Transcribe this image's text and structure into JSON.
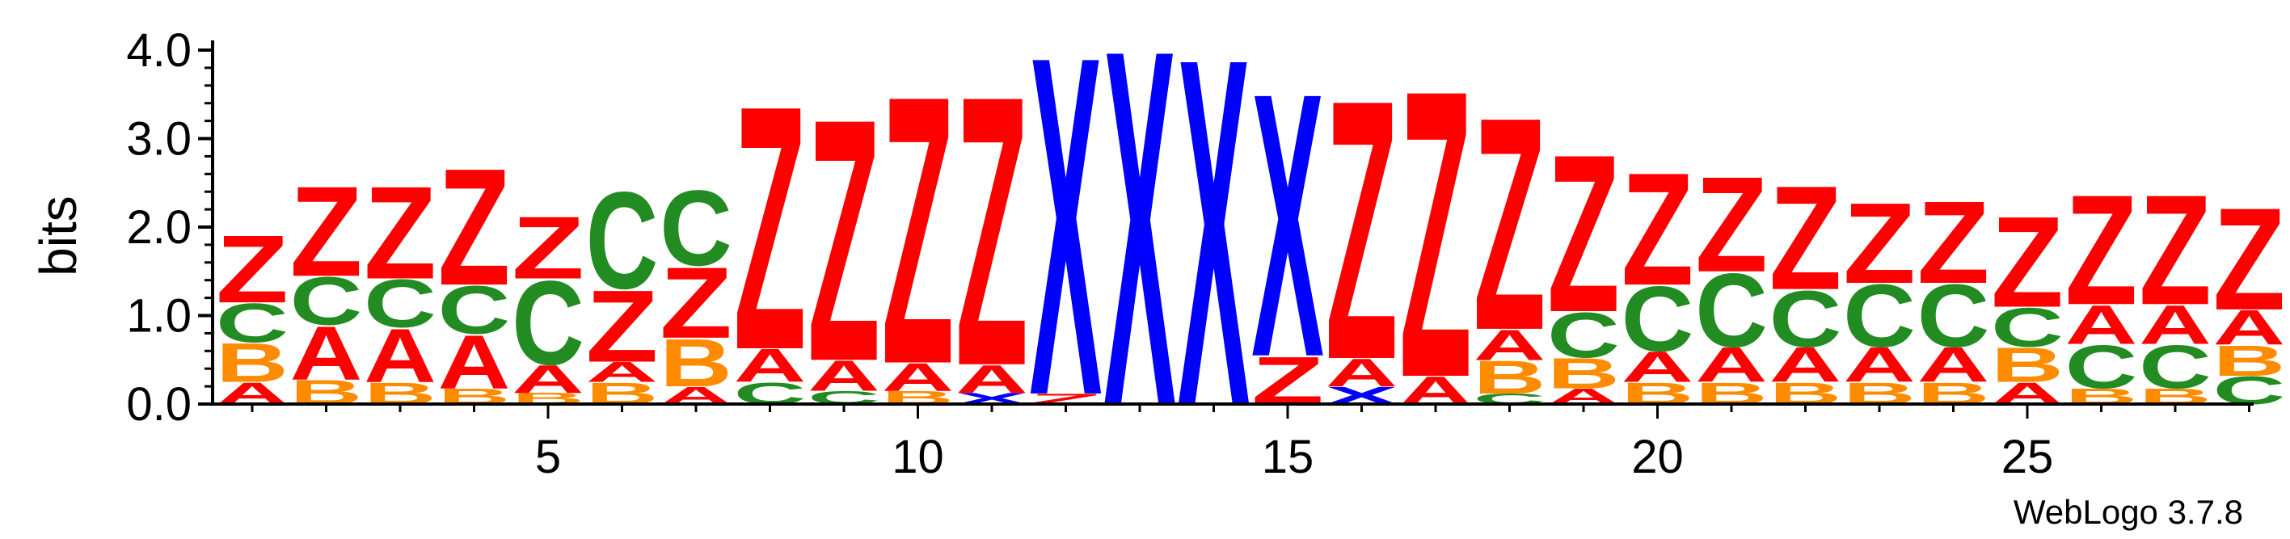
{
  "chart_data": {
    "type": "sequence-logo",
    "ylabel": "bits",
    "ylim": [
      0,
      4.0
    ],
    "y_ticks": [
      "0.0",
      "1.0",
      "2.0",
      "3.0",
      "4.0"
    ],
    "x_ticks": [
      "5",
      "10",
      "15",
      "20",
      "25"
    ],
    "x_tick_positions": [
      5,
      10,
      15,
      20,
      25
    ],
    "positions": 28,
    "colors": {
      "A": "#ff0000",
      "Z": "#ff0000",
      "B": "#ff8c00",
      "C": "#228b22",
      "X": "#0000ff"
    },
    "columns": [
      [
        [
          "A",
          0.25
        ],
        [
          "B",
          0.45
        ],
        [
          "C",
          0.45
        ],
        [
          "Z",
          0.78
        ]
      ],
      [
        [
          "B",
          0.28
        ],
        [
          "A",
          0.62
        ],
        [
          "C",
          0.55
        ],
        [
          "Z",
          1.04
        ]
      ],
      [
        [
          "B",
          0.25
        ],
        [
          "A",
          0.62
        ],
        [
          "C",
          0.55
        ],
        [
          "Z",
          1.07
        ]
      ],
      [
        [
          "B",
          0.18
        ],
        [
          "A",
          0.62
        ],
        [
          "C",
          0.55
        ],
        [
          "Z",
          1.35
        ]
      ],
      [
        [
          "B",
          0.13
        ],
        [
          "A",
          0.32
        ],
        [
          "C",
          0.97
        ],
        [
          "Z",
          0.72
        ]
      ],
      [
        [
          "B",
          0.25
        ],
        [
          "A",
          0.23
        ],
        [
          "Z",
          0.83
        ],
        [
          "C",
          1.12
        ]
      ],
      [
        [
          "A",
          0.2
        ],
        [
          "B",
          0.55
        ],
        [
          "Z",
          0.82
        ],
        [
          "C",
          0.87
        ]
      ],
      [
        [
          "C",
          0.25
        ],
        [
          "A",
          0.38
        ],
        [
          "Z",
          2.82
        ]
      ],
      [
        [
          "C",
          0.15
        ],
        [
          "A",
          0.35
        ],
        [
          "Z",
          2.8
        ]
      ],
      [
        [
          "B",
          0.15
        ],
        [
          "A",
          0.32
        ],
        [
          "Z",
          3.1
        ]
      ],
      [
        [
          "X",
          0.13
        ],
        [
          "A",
          0.32
        ],
        [
          "Z",
          3.12
        ]
      ],
      [
        [
          "Z",
          0.12
        ],
        [
          "X",
          3.92
        ]
      ],
      [
        [
          "X",
          4.12
        ]
      ],
      [
        [
          "X",
          4.02
        ]
      ],
      [
        [
          "Z",
          0.55
        ],
        [
          "X",
          3.05
        ]
      ],
      [
        [
          "X",
          0.2
        ],
        [
          "A",
          0.32
        ],
        [
          "Z",
          3.0
        ]
      ],
      [
        [
          "A",
          0.32
        ],
        [
          "Z",
          3.32
        ]
      ],
      [
        [
          "C",
          0.12
        ],
        [
          "B",
          0.38
        ],
        [
          "A",
          0.35
        ],
        [
          "Z",
          2.46
        ]
      ],
      [
        [
          "A",
          0.18
        ],
        [
          "B",
          0.35
        ],
        [
          "C",
          0.52
        ],
        [
          "Z",
          1.82
        ]
      ],
      [
        [
          "B",
          0.25
        ],
        [
          "A",
          0.35
        ],
        [
          "C",
          0.75
        ],
        [
          "Z",
          1.3
        ]
      ],
      [
        [
          "B",
          0.25
        ],
        [
          "A",
          0.4
        ],
        [
          "C",
          0.85
        ],
        [
          "Z",
          1.1
        ]
      ],
      [
        [
          "B",
          0.25
        ],
        [
          "A",
          0.4
        ],
        [
          "C",
          0.65
        ],
        [
          "Z",
          1.2
        ]
      ],
      [
        [
          "B",
          0.25
        ],
        [
          "A",
          0.4
        ],
        [
          "C",
          0.72
        ],
        [
          "Z",
          0.93
        ]
      ],
      [
        [
          "B",
          0.25
        ],
        [
          "A",
          0.4
        ],
        [
          "C",
          0.72
        ],
        [
          "Z",
          0.95
        ]
      ],
      [
        [
          "A",
          0.25
        ],
        [
          "B",
          0.4
        ],
        [
          "C",
          0.45
        ],
        [
          "Z",
          1.05
        ]
      ],
      [
        [
          "B",
          0.18
        ],
        [
          "C",
          0.5
        ],
        [
          "A",
          0.45
        ],
        [
          "Z",
          1.27
        ]
      ],
      [
        [
          "B",
          0.18
        ],
        [
          "C",
          0.5
        ],
        [
          "A",
          0.45
        ],
        [
          "Z",
          1.27
        ]
      ],
      [
        [
          "C",
          0.32
        ],
        [
          "B",
          0.35
        ],
        [
          "A",
          0.4
        ],
        [
          "Z",
          1.18
        ]
      ]
    ]
  },
  "footer": {
    "version_label": "WebLogo 3.7.8"
  }
}
